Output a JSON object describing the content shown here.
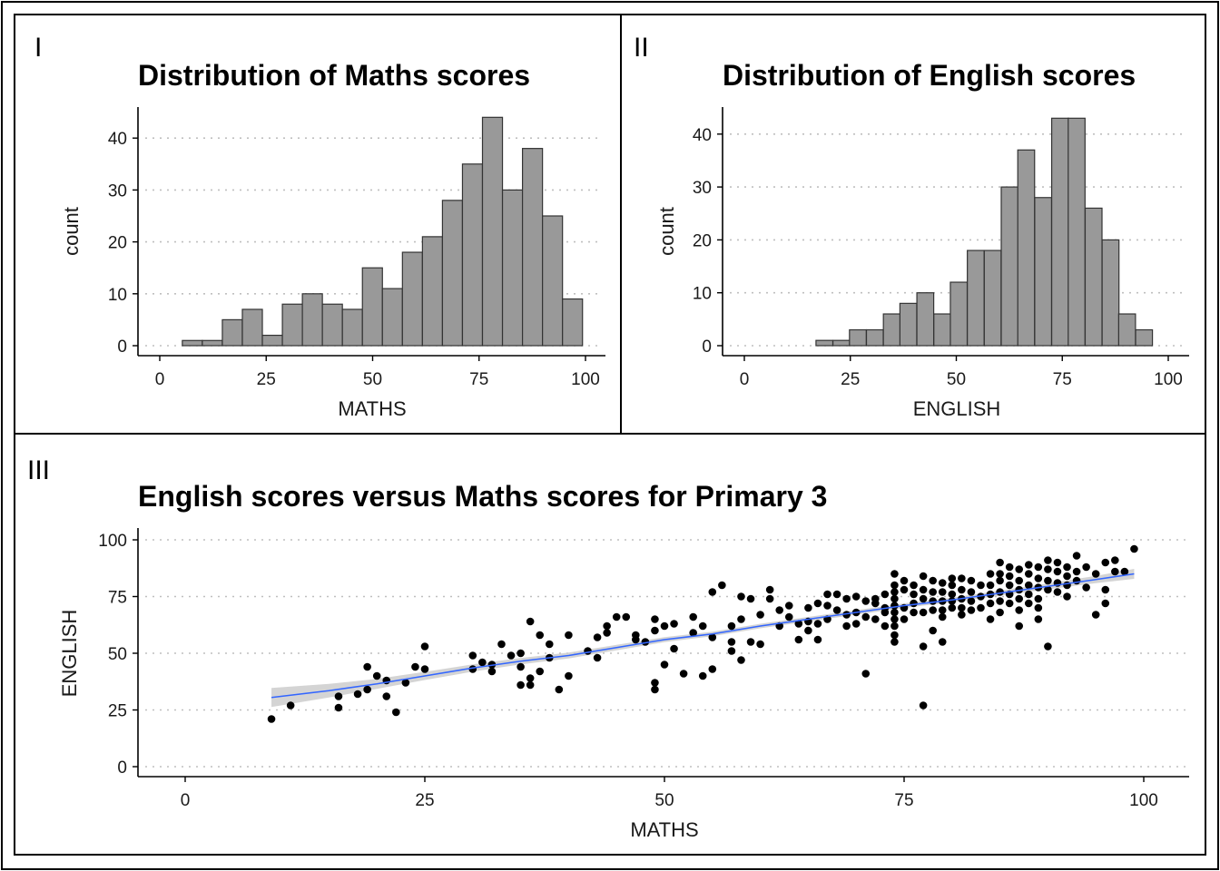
{
  "panels": {
    "tag_1": "I",
    "tag_2": "II",
    "tag_3": "III"
  },
  "colors": {
    "bar_fill": "#999999",
    "bar_outline": "#333333",
    "point": "#000000",
    "smooth_line": "#3366ff",
    "smooth_band": "#cccccc",
    "grid": "#bfbfbf"
  },
  "chart_data": [
    {
      "type": "bar",
      "subtype": "histogram",
      "title": "Distribution of Maths scores",
      "xlabel": "MATHS",
      "ylabel": "count",
      "xlim": [
        0,
        100
      ],
      "ylim": [
        0,
        44
      ],
      "x_ticks": [
        "0",
        "25",
        "50",
        "75",
        "100"
      ],
      "y_ticks": [
        "0",
        "10",
        "20",
        "30",
        "40"
      ],
      "grid": "horizontal dotted",
      "bin_width": 4.7,
      "bins": [
        {
          "x0": 5.3,
          "count": 1
        },
        {
          "x0": 10.0,
          "count": 1
        },
        {
          "x0": 14.7,
          "count": 5
        },
        {
          "x0": 19.4,
          "count": 7
        },
        {
          "x0": 24.1,
          "count": 2
        },
        {
          "x0": 28.8,
          "count": 8
        },
        {
          "x0": 33.5,
          "count": 10
        },
        {
          "x0": 38.2,
          "count": 8
        },
        {
          "x0": 42.9,
          "count": 7
        },
        {
          "x0": 47.6,
          "count": 15
        },
        {
          "x0": 52.3,
          "count": 11
        },
        {
          "x0": 57.0,
          "count": 18
        },
        {
          "x0": 61.7,
          "count": 21
        },
        {
          "x0": 66.4,
          "count": 28
        },
        {
          "x0": 71.1,
          "count": 35
        },
        {
          "x0": 75.8,
          "count": 44
        },
        {
          "x0": 80.5,
          "count": 30
        },
        {
          "x0": 85.2,
          "count": 38
        },
        {
          "x0": 89.9,
          "count": 25
        },
        {
          "x0": 94.6,
          "count": 9
        }
      ]
    },
    {
      "type": "bar",
      "subtype": "histogram",
      "title": "Distribution of English scores",
      "xlabel": "ENGLISH",
      "ylabel": "count",
      "xlim": [
        0,
        100
      ],
      "ylim": [
        0,
        43
      ],
      "x_ticks": [
        "0",
        "25",
        "50",
        "75",
        "100"
      ],
      "y_ticks": [
        "0",
        "10",
        "20",
        "30",
        "40"
      ],
      "grid": "horizontal dotted",
      "bin_width": 3.97,
      "bins": [
        {
          "x0": 16.9,
          "count": 1
        },
        {
          "x0": 20.9,
          "count": 1
        },
        {
          "x0": 24.8,
          "count": 3
        },
        {
          "x0": 28.8,
          "count": 3
        },
        {
          "x0": 32.8,
          "count": 6
        },
        {
          "x0": 36.7,
          "count": 8
        },
        {
          "x0": 40.7,
          "count": 10
        },
        {
          "x0": 44.7,
          "count": 6
        },
        {
          "x0": 48.6,
          "count": 12
        },
        {
          "x0": 52.6,
          "count": 18
        },
        {
          "x0": 56.6,
          "count": 18
        },
        {
          "x0": 60.6,
          "count": 30
        },
        {
          "x0": 64.5,
          "count": 37
        },
        {
          "x0": 68.5,
          "count": 28
        },
        {
          "x0": 72.5,
          "count": 43
        },
        {
          "x0": 76.4,
          "count": 43
        },
        {
          "x0": 80.4,
          "count": 26
        },
        {
          "x0": 84.4,
          "count": 20
        },
        {
          "x0": 88.3,
          "count": 6
        },
        {
          "x0": 92.3,
          "count": 3
        }
      ]
    },
    {
      "type": "scatter",
      "title": "English scores versus Maths scores for Primary 3",
      "xlabel": "MATHS",
      "ylabel": "ENGLISH",
      "xlim": [
        0,
        100
      ],
      "ylim": [
        0,
        100
      ],
      "x_ticks": [
        "0",
        "25",
        "50",
        "75",
        "100"
      ],
      "y_ticks": [
        "0",
        "25",
        "50",
        "75",
        "100"
      ],
      "grid": "horizontal dotted",
      "points": [
        [
          9,
          21
        ],
        [
          11,
          27
        ],
        [
          16,
          26
        ],
        [
          16,
          31
        ],
        [
          18,
          32
        ],
        [
          19,
          44
        ],
        [
          19,
          34
        ],
        [
          20,
          40
        ],
        [
          21,
          31
        ],
        [
          21,
          38
        ],
        [
          22,
          24
        ],
        [
          23,
          37
        ],
        [
          24,
          44
        ],
        [
          25,
          43
        ],
        [
          25,
          53
        ],
        [
          30,
          49
        ],
        [
          30,
          43
        ],
        [
          31,
          46
        ],
        [
          32,
          42
        ],
        [
          32,
          45
        ],
        [
          33,
          54
        ],
        [
          34,
          49
        ],
        [
          35,
          44
        ],
        [
          35,
          36
        ],
        [
          35,
          50
        ],
        [
          36,
          39
        ],
        [
          36,
          36
        ],
        [
          36,
          64
        ],
        [
          37,
          42
        ],
        [
          37,
          58
        ],
        [
          38,
          54
        ],
        [
          38,
          48
        ],
        [
          39,
          34
        ],
        [
          40,
          40
        ],
        [
          40,
          58
        ],
        [
          42,
          51
        ],
        [
          43,
          57
        ],
        [
          43,
          48
        ],
        [
          44,
          62
        ],
        [
          44,
          59
        ],
        [
          45,
          66
        ],
        [
          46,
          66
        ],
        [
          47,
          58
        ],
        [
          47,
          56
        ],
        [
          48,
          55
        ],
        [
          49,
          65
        ],
        [
          49,
          60
        ],
        [
          49,
          37
        ],
        [
          49,
          34
        ],
        [
          50,
          62
        ],
        [
          50,
          45
        ],
        [
          51,
          52
        ],
        [
          51,
          63
        ],
        [
          52,
          41
        ],
        [
          53,
          66
        ],
        [
          53,
          59
        ],
        [
          54,
          62
        ],
        [
          54,
          40
        ],
        [
          55,
          57
        ],
        [
          55,
          43
        ],
        [
          55,
          77
        ],
        [
          56,
          80
        ],
        [
          57,
          55
        ],
        [
          57,
          62
        ],
        [
          57,
          51
        ],
        [
          58,
          75
        ],
        [
          58,
          65
        ],
        [
          58,
          47
        ],
        [
          59,
          74
        ],
        [
          59,
          55
        ],
        [
          60,
          67
        ],
        [
          60,
          54
        ],
        [
          61,
          78
        ],
        [
          61,
          74
        ],
        [
          62,
          69
        ],
        [
          62,
          62
        ],
        [
          63,
          71
        ],
        [
          63,
          66
        ],
        [
          64,
          63
        ],
        [
          64,
          56
        ],
        [
          65,
          60
        ],
        [
          65,
          70
        ],
        [
          65,
          64
        ],
        [
          66,
          72
        ],
        [
          66,
          63
        ],
        [
          66,
          56
        ],
        [
          67,
          76
        ],
        [
          67,
          65
        ],
        [
          67,
          71
        ],
        [
          68,
          76
        ],
        [
          68,
          69
        ],
        [
          69,
          74
        ],
        [
          69,
          67
        ],
        [
          69,
          62
        ],
        [
          70,
          75
        ],
        [
          70,
          68
        ],
        [
          70,
          63
        ],
        [
          71,
          73
        ],
        [
          71,
          66
        ],
        [
          71,
          41
        ],
        [
          72,
          74
        ],
        [
          72,
          72
        ],
        [
          72,
          65
        ],
        [
          73,
          76
        ],
        [
          73,
          70
        ],
        [
          73,
          68
        ],
        [
          73,
          62
        ],
        [
          74,
          85
        ],
        [
          74,
          80
        ],
        [
          74,
          77
        ],
        [
          74,
          74
        ],
        [
          74,
          71
        ],
        [
          74,
          68
        ],
        [
          74,
          65
        ],
        [
          74,
          62
        ],
        [
          74,
          58
        ],
        [
          74,
          55
        ],
        [
          75,
          82
        ],
        [
          75,
          78
        ],
        [
          75,
          70
        ],
        [
          75,
          65
        ],
        [
          76,
          80
        ],
        [
          76,
          76
        ],
        [
          76,
          72
        ],
        [
          76,
          68
        ],
        [
          77,
          84
        ],
        [
          77,
          78
        ],
        [
          77,
          74
        ],
        [
          77,
          68
        ],
        [
          77,
          53
        ],
        [
          77,
          27
        ],
        [
          78,
          82
        ],
        [
          78,
          77
        ],
        [
          78,
          73
        ],
        [
          78,
          69
        ],
        [
          78,
          60
        ],
        [
          79,
          81
        ],
        [
          79,
          77
        ],
        [
          79,
          73
        ],
        [
          79,
          69
        ],
        [
          79,
          66
        ],
        [
          79,
          55
        ],
        [
          80,
          83
        ],
        [
          80,
          80
        ],
        [
          80,
          76
        ],
        [
          80,
          73
        ],
        [
          80,
          70
        ],
        [
          81,
          83
        ],
        [
          81,
          78
        ],
        [
          81,
          74
        ],
        [
          81,
          70
        ],
        [
          81,
          67
        ],
        [
          82,
          82
        ],
        [
          82,
          77
        ],
        [
          82,
          73
        ],
        [
          82,
          69
        ],
        [
          83,
          80
        ],
        [
          83,
          75
        ],
        [
          83,
          70
        ],
        [
          84,
          85
        ],
        [
          84,
          80
        ],
        [
          84,
          76
        ],
        [
          84,
          72
        ],
        [
          84,
          65
        ],
        [
          85,
          90
        ],
        [
          85,
          85
        ],
        [
          85,
          82
        ],
        [
          85,
          77
        ],
        [
          85,
          73
        ],
        [
          85,
          68
        ],
        [
          86,
          88
        ],
        [
          86,
          84
        ],
        [
          86,
          80
        ],
        [
          86,
          76
        ],
        [
          86,
          72
        ],
        [
          87,
          87
        ],
        [
          87,
          82
        ],
        [
          87,
          78
        ],
        [
          87,
          74
        ],
        [
          87,
          69
        ],
        [
          87,
          62
        ],
        [
          88,
          89
        ],
        [
          88,
          85
        ],
        [
          88,
          80
        ],
        [
          88,
          76
        ],
        [
          88,
          72
        ],
        [
          89,
          88
        ],
        [
          89,
          83
        ],
        [
          89,
          79
        ],
        [
          89,
          74
        ],
        [
          89,
          70
        ],
        [
          89,
          65
        ],
        [
          90,
          91
        ],
        [
          90,
          87
        ],
        [
          90,
          82
        ],
        [
          90,
          78
        ],
        [
          90,
          53
        ],
        [
          91,
          90
        ],
        [
          91,
          86
        ],
        [
          91,
          81
        ],
        [
          91,
          77
        ],
        [
          92,
          88
        ],
        [
          92,
          84
        ],
        [
          92,
          80
        ],
        [
          92,
          75
        ],
        [
          93,
          93
        ],
        [
          93,
          86
        ],
        [
          93,
          82
        ],
        [
          94,
          88
        ],
        [
          94,
          79
        ],
        [
          95,
          85
        ],
        [
          95,
          67
        ],
        [
          96,
          90
        ],
        [
          96,
          78
        ],
        [
          96,
          72
        ],
        [
          97,
          91
        ],
        [
          97,
          86
        ],
        [
          98,
          86
        ],
        [
          99,
          96
        ]
      ],
      "smooth": {
        "method": "loess",
        "x": [
          9,
          15,
          20,
          25,
          30,
          35,
          40,
          45,
          50,
          55,
          60,
          65,
          70,
          75,
          80,
          85,
          90,
          95,
          99
        ],
        "y": [
          30.5,
          33.5,
          36.5,
          40,
          43.5,
          46.5,
          49,
          52.5,
          56,
          58.5,
          62,
          65,
          68,
          71,
          73.5,
          76.5,
          79.5,
          82.5,
          85
        ],
        "band": [
          4.2,
          3.0,
          2.2,
          1.8,
          1.6,
          1.4,
          1.3,
          1.2,
          1.1,
          1.0,
          1.0,
          1.0,
          1.0,
          1.0,
          1.0,
          1.1,
          1.3,
          1.6,
          2.2
        ]
      }
    }
  ]
}
